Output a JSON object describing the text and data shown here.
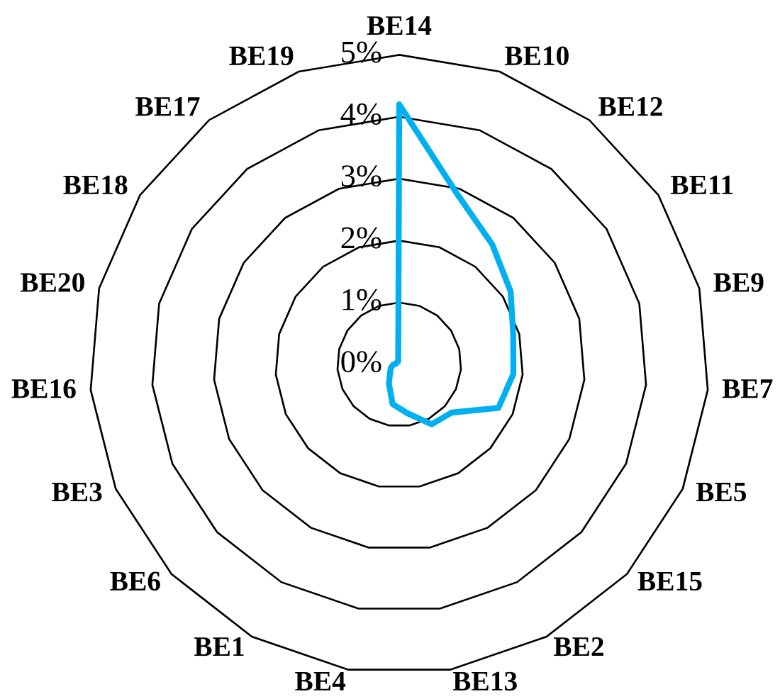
{
  "chart_data": {
    "type": "radar",
    "categories": [
      "BE14",
      "BE10",
      "BE12",
      "BE11",
      "BE9",
      "BE7",
      "BE5",
      "BE15",
      "BE2",
      "BE13",
      "BE4",
      "BE1",
      "BE6",
      "BE3",
      "BE16",
      "BE20",
      "BE18",
      "BE17",
      "BE19"
    ],
    "series": [
      {
        "color": "#00b0f0",
        "values": [
          4.2,
          2.9,
          2.45,
          2.15,
          1.9,
          1.85,
          1.75,
          1.15,
          1.1,
          0.8,
          0.65,
          0.35,
          0.2,
          0.15,
          0.1,
          0.05,
          0.05,
          0.05,
          0.05
        ]
      }
    ],
    "ylim": [
      0,
      5
    ],
    "yticks": [
      {
        "value": 0,
        "label": "0%"
      },
      {
        "value": 1,
        "label": "1%"
      },
      {
        "value": 2,
        "label": "2%"
      },
      {
        "value": 3,
        "label": "3%"
      },
      {
        "value": 4,
        "label": "4%"
      },
      {
        "value": 5,
        "label": "5%"
      }
    ],
    "grid": true
  }
}
